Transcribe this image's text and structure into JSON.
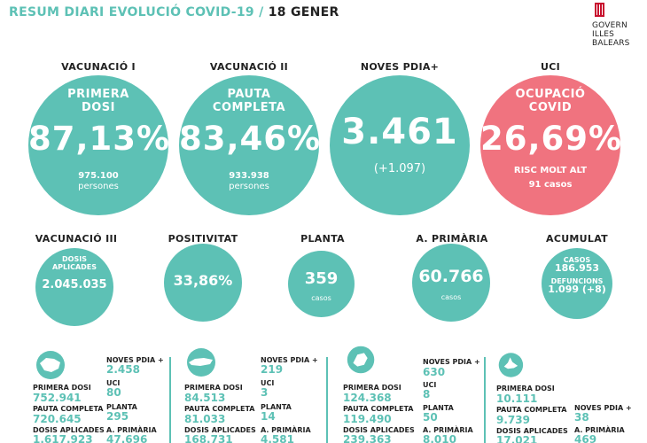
{
  "header": {
    "title": "RESUM DIARI EVOLUCIÓ COVID-19 /",
    "date": "18 GENER"
  },
  "logo": {
    "line1": "GOVERN",
    "line2": "ILLES",
    "line3": "BALEARS"
  },
  "top_cards": [
    {
      "label": "VACUNACIÓ I",
      "sub1": "PRIMERA",
      "sub2": "DOSI",
      "value": "87,13%",
      "foot1": "975.100",
      "foot2": "persones"
    },
    {
      "label": "VACUNACIÓ II",
      "sub1": "PAUTA",
      "sub2": "COMPLETA",
      "value": "83,46%",
      "foot1": "933.938",
      "foot2": "persones"
    },
    {
      "label": "NOVES PDIA+",
      "value": "3.461",
      "foot1": "(+1.097)"
    },
    {
      "label": "UCI",
      "sub1": "OCUPACIÓ",
      "sub2": "COVID",
      "value": "26,69%",
      "foot1": "RISC MOLT ALT",
      "foot2": "91 casos"
    }
  ],
  "mid_cards": [
    {
      "label": "VACUNACIÓ III",
      "small1": "DOSIS",
      "small2": "APLICADES",
      "value": "2.045.035"
    },
    {
      "label": "POSITIVITAT",
      "value": "33,86%"
    },
    {
      "label": "PLANTA",
      "value": "359",
      "small1": "casos"
    },
    {
      "label": "A. PRIMÀRIA",
      "value": "60.766",
      "small1": "casos"
    },
    {
      "label": "ACUMULAT",
      "small1": "CASOS",
      "value1": "186.953",
      "small2": "DEFUNCIONS",
      "value2": "1.099 (+8)"
    }
  ],
  "islands": [
    {
      "name": "mallorca",
      "primera_label": "PRIMERA DOSI",
      "primera": "752.941",
      "pauta_label": "PAUTA COMPLETA",
      "pauta": "720.645",
      "dosis_label": "DOSIS APLICADES",
      "dosis": "1.617.923",
      "pdia_label": "NOVES PDIA +",
      "pdia": "2.458",
      "uci_label": "UCI",
      "uci": "80",
      "planta_label": "PLANTA",
      "planta": "295",
      "ap_label": "A. PRIMÀRIA",
      "ap": "47.696"
    },
    {
      "name": "menorca",
      "primera_label": "PRIMERA DOSI",
      "primera": "84.513",
      "pauta_label": "PAUTA COMPLETA",
      "pauta": "81.033",
      "dosis_label": "DOSIS APLICADES",
      "dosis": "168.731",
      "pdia_label": "NOVES PDIA +",
      "pdia": "219",
      "uci_label": "UCI",
      "uci": "3",
      "planta_label": "PLANTA",
      "planta": "14",
      "ap_label": "A. PRIMÀRIA",
      "ap": "4.581"
    },
    {
      "name": "eivissa",
      "primera_label": "PRIMERA DOSI",
      "primera": "124.368",
      "pauta_label": "PAUTA COMPLETA",
      "pauta": "119.490",
      "dosis_label": "DOSIS APLICADES",
      "dosis": "239.363",
      "pdia_label": "NOVES PDIA +",
      "pdia": "630",
      "uci_label": "UCI",
      "uci": "8",
      "planta_label": "PLANTA",
      "planta": "50",
      "ap_label": "A. PRIMÀRIA",
      "ap": "8.010"
    },
    {
      "name": "formentera",
      "primera_label": "PRIMERA DOSI",
      "primera": "10.111",
      "pauta_label": "PAUTA COMPLETA",
      "pauta": "9.739",
      "dosis_label": "DOSIS APLICADES",
      "dosis": "17.021",
      "pdia_label": "NOVES PDIA +",
      "pdia": "38",
      "ap_label": "A. PRIMÀRIA",
      "ap": "469"
    }
  ],
  "colors": {
    "teal": "#5dc1b5",
    "red": "#f0737f",
    "logo_red": "#c8102e"
  }
}
